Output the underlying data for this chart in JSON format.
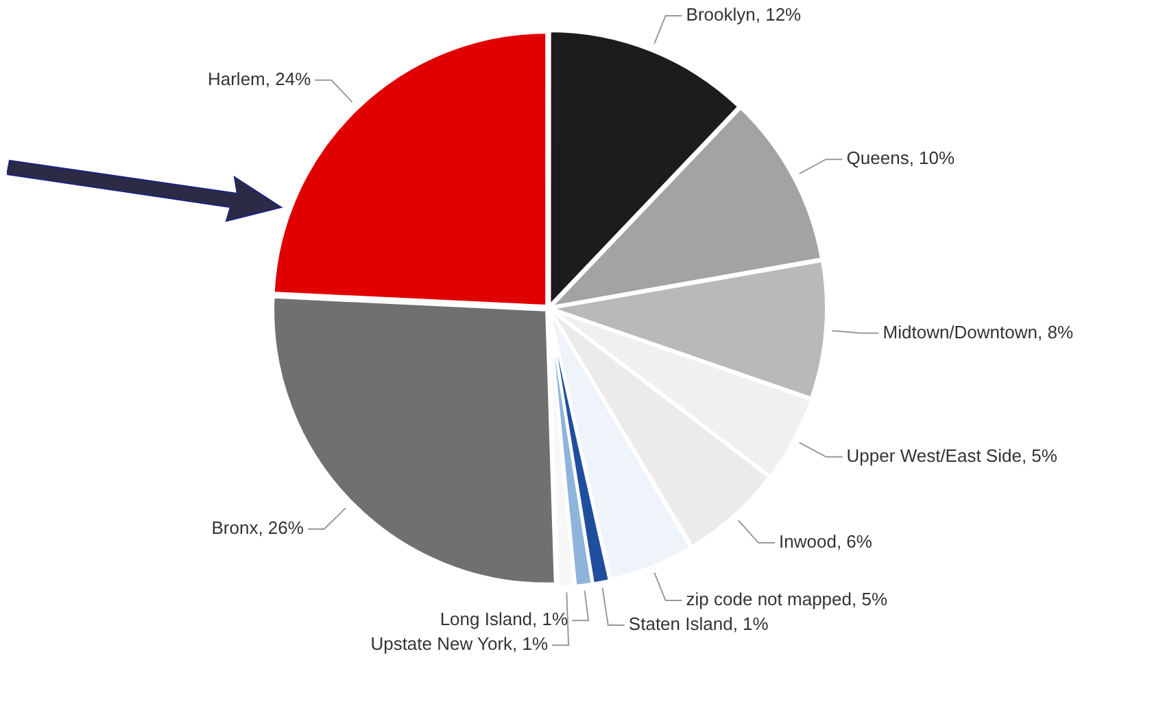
{
  "chart_data": {
    "type": "pie",
    "categories": [
      "Brooklyn",
      "Queens",
      "Midtown/Downtown",
      "Upper West/East Side",
      "Inwood",
      "zip code not mapped",
      "Staten Island",
      "Long Island",
      "Upstate New York",
      "Bronx",
      "Harlem"
    ],
    "values": [
      12,
      10,
      8,
      5,
      6,
      5,
      1,
      1,
      1,
      26,
      24
    ],
    "value_labels": [
      "12%",
      "10%",
      "8%",
      "5%",
      "6%",
      "5%",
      "1%",
      "1%",
      "1%",
      "26%",
      "24%"
    ],
    "colors": [
      "#1c1c1c",
      "#a3a3a3",
      "#b9b9b9",
      "#f0f0f0",
      "#ebebeb",
      "#eef4fa",
      "#1f4e9c",
      "#8fb4dc",
      "#f7f7f7",
      "#707070",
      "#e00000"
    ]
  }
}
